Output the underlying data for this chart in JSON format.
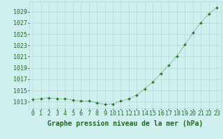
{
  "x": [
    0,
    1,
    2,
    3,
    4,
    5,
    6,
    7,
    8,
    9,
    10,
    11,
    12,
    13,
    14,
    15,
    16,
    17,
    18,
    19,
    20,
    21,
    22,
    23
  ],
  "y": [
    1013.4,
    1013.5,
    1013.7,
    1013.5,
    1013.5,
    1013.3,
    1013.1,
    1013.1,
    1012.8,
    1012.5,
    1012.6,
    1013.1,
    1013.5,
    1014.2,
    1015.3,
    1016.5,
    1018.0,
    1019.5,
    1021.1,
    1023.1,
    1025.2,
    1027.0,
    1028.6,
    1029.7
  ],
  "line_color": "#1a6e1a",
  "marker": "+",
  "bg_color": "#d0f0f0",
  "grid_color": "#b8d8d8",
  "ylabel_ticks": [
    1013,
    1015,
    1017,
    1019,
    1021,
    1023,
    1025,
    1027,
    1029
  ],
  "xlabel": "Graphe pression niveau de la mer (hPa)",
  "ylim": [
    1011.8,
    1030.8
  ],
  "xlim": [
    -0.5,
    23.5
  ],
  "title_color": "#1a6e1a",
  "xlabel_fontsize": 7,
  "tick_fontsize": 6,
  "xlabel_bold": true
}
